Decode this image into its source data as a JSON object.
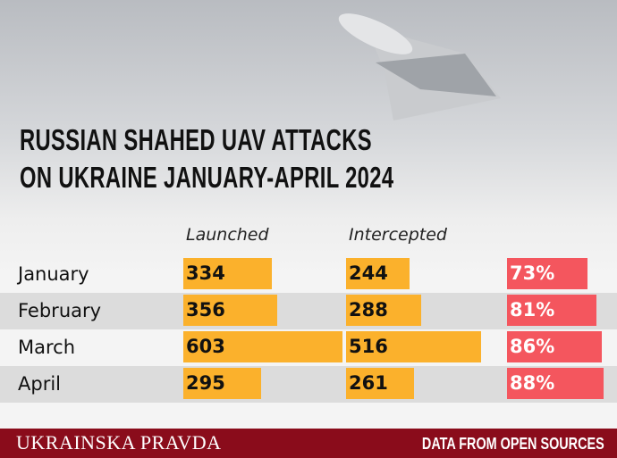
{
  "chart_data": {
    "type": "bar",
    "title": "RUSSIAN SHAHED UAV ATTACKS ON UKRAINE JANUARY-APRIL 2024",
    "categories": [
      "January",
      "February",
      "March",
      "April"
    ],
    "series": [
      {
        "name": "Launched",
        "color": "#fbb12c",
        "values": [
          334,
          356,
          603,
          295
        ]
      },
      {
        "name": "Intercepted",
        "color": "#fbb12c",
        "values": [
          244,
          288,
          516,
          261
        ]
      },
      {
        "color": "#f4565e",
        "values": [
          73,
          81,
          86,
          88
        ],
        "value_labels": [
          "73%",
          "81%",
          "86%",
          "88%"
        ]
      }
    ]
  },
  "footer": {
    "brand": "UKRAINSKA PRAVDA",
    "source": "DATA FROM OPEN SOURCES"
  }
}
